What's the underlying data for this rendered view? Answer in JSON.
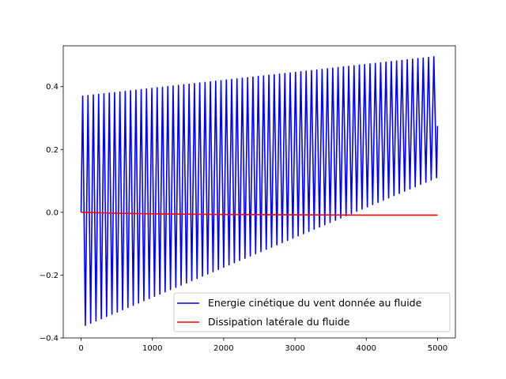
{
  "chart_data": {
    "type": "line",
    "title": "",
    "xlabel": "",
    "ylabel": "",
    "xlim": [
      -250,
      5250
    ],
    "ylim": [
      -0.4,
      0.53
    ],
    "xticks": [
      0,
      1000,
      2000,
      3000,
      4000,
      5000
    ],
    "xtick_labels": [
      "0",
      "1000",
      "2000",
      "3000",
      "4000",
      "5000"
    ],
    "yticks": [
      -0.4,
      -0.2,
      0.0,
      0.2,
      0.4
    ],
    "ytick_labels": [
      "−0.4",
      "−0.2",
      "0.0",
      "0.2",
      "0.4"
    ],
    "grid": false,
    "legend_position": "lower-right",
    "series": [
      {
        "name": "Energie cinétique du vent donnée au fluide",
        "color": "#0000ff",
        "kind": "oscillation",
        "x_start": 0,
        "x_end": 5000,
        "cycles": 67,
        "start_value": 0.0,
        "final_value": 0.275,
        "peaks_start": 0.37,
        "peaks_end": 0.495,
        "troughs_start": -0.36,
        "troughs_end": 0.11
      },
      {
        "name": "Dissipation latérale du fluide",
        "color": "#ff0000",
        "kind": "line",
        "x": [
          0,
          500,
          1000,
          2000,
          3000,
          4000,
          5000
        ],
        "y": [
          0.0,
          -0.003,
          -0.005,
          -0.007,
          -0.008,
          -0.009,
          -0.009
        ]
      }
    ]
  }
}
